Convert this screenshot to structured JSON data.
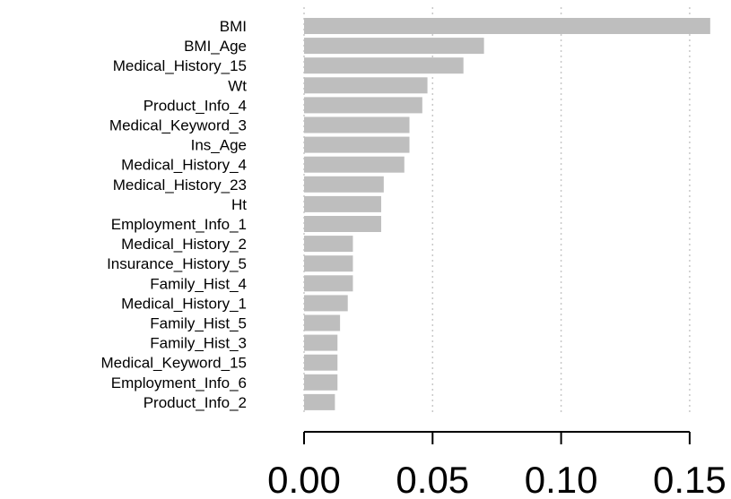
{
  "chart_data": {
    "type": "bar",
    "orientation": "horizontal",
    "categories": [
      "BMI",
      "BMI_Age",
      "Medical_History_15",
      "Wt",
      "Product_Info_4",
      "Medical_Keyword_3",
      "Ins_Age",
      "Medical_History_4",
      "Medical_History_23",
      "Ht",
      "Employment_Info_1",
      "Medical_History_2",
      "Insurance_History_5",
      "Family_Hist_4",
      "Medical_History_1",
      "Family_Hist_5",
      "Family_Hist_3",
      "Medical_Keyword_15",
      "Employment_Info_6",
      "Product_Info_2"
    ],
    "values": [
      0.158,
      0.07,
      0.062,
      0.048,
      0.046,
      0.041,
      0.041,
      0.039,
      0.031,
      0.03,
      0.03,
      0.019,
      0.019,
      0.019,
      0.017,
      0.014,
      0.013,
      0.013,
      0.013,
      0.012
    ],
    "x_ticks": [
      0.0,
      0.05,
      0.1,
      0.15
    ],
    "x_tick_labels": [
      "0.00",
      "0.05",
      "0.10",
      "0.15"
    ],
    "xlim": [
      0,
      0.16
    ],
    "grid": "vertical dotted",
    "bar_color": "#bebebe",
    "grid_color": "#c8c8c8",
    "axis_color": "#000000",
    "title": "",
    "xlabel": "",
    "ylabel": ""
  }
}
